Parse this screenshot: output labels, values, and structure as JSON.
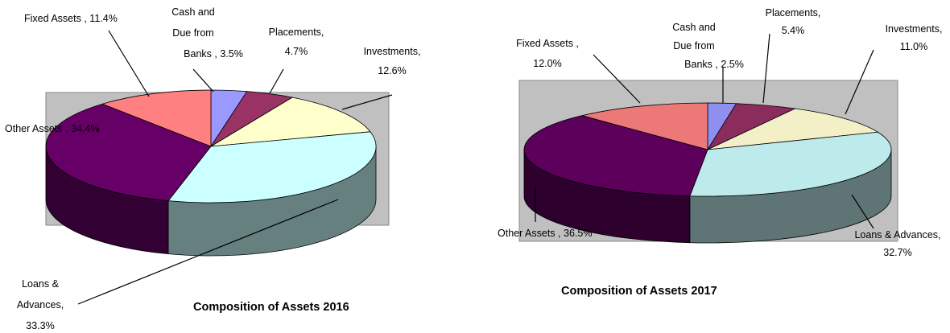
{
  "chart_data": [
    {
      "type": "pie",
      "title": "Composition of Assets 2016",
      "categories": [
        "Cash and Due from Banks",
        "Placements,",
        "Investments,",
        "Loans & Advances,",
        "Other Assets",
        "Fixed Assets"
      ],
      "values": [
        3.5,
        4.7,
        12.6,
        33.3,
        34.4,
        11.4
      ],
      "value_labels": [
        ", 3.5%",
        "4.7%",
        "12.6%",
        "33.3%",
        ", 34.4%",
        ", 11.4%"
      ],
      "colors": [
        "#9999ff",
        "#993366",
        "#ffffcc",
        "#ccffff",
        "#660066",
        "#ff8080"
      ]
    },
    {
      "type": "pie",
      "title": "Composition of Assets 2017",
      "categories": [
        "Cash and Due from Banks",
        "Placements,",
        "Investments,",
        "Loans & Advances,",
        "Other Assets",
        "Fixed Assets ,"
      ],
      "values": [
        2.5,
        5.4,
        11.0,
        32.7,
        36.5,
        12.0
      ],
      "value_labels": [
        ", 2.5%",
        "5.4%",
        "11.0%",
        "32.7%",
        ", 36.5%",
        "12.0%"
      ],
      "colors": [
        "#8f8ff0",
        "#8a2d5c",
        "#f3f0c8",
        "#bdeaea",
        "#5c005c",
        "#ec7878"
      ]
    }
  ]
}
